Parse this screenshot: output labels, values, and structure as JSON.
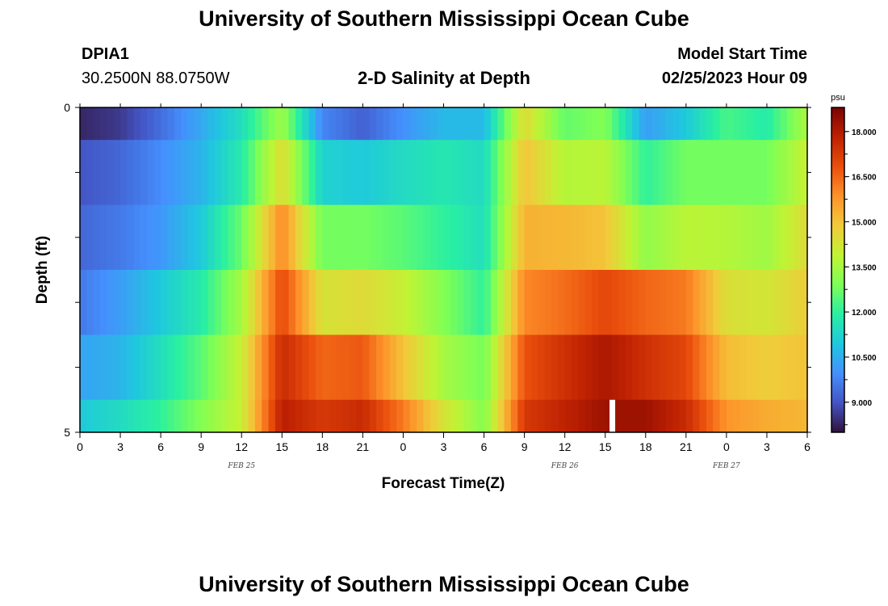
{
  "header": {
    "title": "University of Southern Mississippi Ocean Cube",
    "station_id": "DPIA1",
    "station_coords": "30.2500N  88.0750W",
    "plot_title": "2-D Salinity at Depth",
    "model_label": "Model Start Time",
    "model_time": "02/25/2023 Hour 09"
  },
  "footer": {
    "title": "University of Southern Mississippi Ocean Cube"
  },
  "chart_data": {
    "type": "heatmap",
    "title": "2-D Salinity at Depth",
    "xlabel": "Forecast Time(Z)",
    "ylabel": "Depth (ft)",
    "x_tick_labels": [
      "0",
      "3",
      "6",
      "9",
      "12",
      "15",
      "18",
      "21",
      "0",
      "3",
      "6",
      "9",
      "12",
      "15",
      "18",
      "21",
      "0",
      "3",
      "6"
    ],
    "date_labels": [
      "FEB 25",
      "FEB 26",
      "FEB 27"
    ],
    "y_tick_labels": [
      "0",
      "5"
    ],
    "ylim": [
      0,
      5
    ],
    "colorbar": {
      "unit": "psu",
      "labels": [
        "18.000",
        "16.500",
        "15.000",
        "13.500",
        "12.000",
        "10.500",
        "9.000"
      ],
      "range": [
        8.0,
        18.8
      ]
    },
    "colors": {
      "scale": [
        "#30123b",
        "#4454c4",
        "#4490fe",
        "#1fc8de",
        "#29efa2",
        "#7dff56",
        "#c1f334",
        "#f1ca3a",
        "#fe922a",
        "#ea4f0d",
        "#be2102",
        "#7a0403"
      ]
    },
    "hours": [
      0,
      3,
      6,
      9,
      12,
      15,
      18,
      21,
      24,
      27,
      30,
      33,
      36,
      39,
      42,
      45,
      48,
      51,
      54
    ],
    "missing": [
      {
        "hour": 39.5,
        "layer": 5
      }
    ],
    "layers": [
      {
        "depth_range": "0-0.5",
        "values": [
          8.3,
          8.6,
          9.4,
          10.4,
          11.5,
          13.4,
          9.8,
          9.2,
          10.0,
          10.7,
          10.7,
          14.5,
          12.6,
          13.0,
          10.2,
          11.0,
          12.3,
          11.8,
          13.6
        ]
      },
      {
        "depth_range": "0.5-1.5",
        "values": [
          9.0,
          9.3,
          9.9,
          10.6,
          11.8,
          14.5,
          11.2,
          11.0,
          11.4,
          11.7,
          11.4,
          15.0,
          13.7,
          13.8,
          12.0,
          12.8,
          12.8,
          12.8,
          14.0
        ]
      },
      {
        "depth_range": "1.5-2.5",
        "values": [
          9.3,
          9.6,
          10.1,
          11.0,
          12.7,
          16.0,
          12.8,
          12.8,
          12.5,
          12.0,
          11.5,
          15.3,
          15.2,
          15.0,
          13.2,
          13.8,
          13.7,
          13.4,
          14.5
        ]
      },
      {
        "depth_range": "2.5-3.5",
        "values": [
          9.6,
          10.2,
          11.0,
          11.8,
          13.5,
          17.0,
          14.3,
          14.5,
          14.0,
          13.0,
          12.0,
          16.0,
          16.4,
          17.0,
          16.5,
          16.2,
          14.4,
          14.2,
          14.8
        ]
      },
      {
        "depth_range": "3.5-4.5",
        "values": [
          10.3,
          10.6,
          11.5,
          12.5,
          14.0,
          17.6,
          16.5,
          16.7,
          15.0,
          13.5,
          12.8,
          16.8,
          17.5,
          18.1,
          17.5,
          17.0,
          15.1,
          14.8,
          15.0
        ]
      },
      {
        "depth_range": "4.5-5",
        "values": [
          11.0,
          11.4,
          12.0,
          13.0,
          14.0,
          17.9,
          17.3,
          17.6,
          16.2,
          14.3,
          13.0,
          17.3,
          17.8,
          18.3,
          18.3,
          17.6,
          15.8,
          15.4,
          15.2
        ]
      }
    ]
  }
}
